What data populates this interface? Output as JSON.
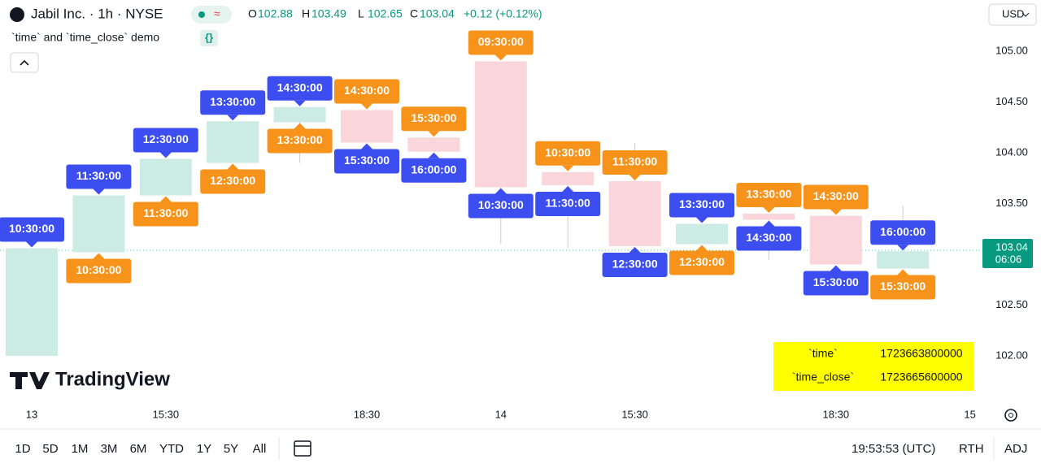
{
  "header": {
    "symbol": "Jabil Inc. · 1h · NYSE",
    "ohlc": [
      {
        "key": "O",
        "value": "102.88"
      },
      {
        "key": "H",
        "value": "103.49"
      },
      {
        "key": "L",
        "value": "102.65"
      },
      {
        "key": "C",
        "value": "103.04"
      }
    ],
    "change": "+0.12 (+0.12%)",
    "indicator": "`time` and `time_close` demo",
    "currency": "USD"
  },
  "chart_data": {
    "type": "candlestick",
    "categories": [
      "13",
      null,
      "15:30",
      null,
      null,
      "18:30",
      null,
      "14",
      null,
      "15:30",
      null,
      null,
      "18:30",
      null,
      "15"
    ],
    "open": [
      102.0,
      103.02,
      103.58,
      103.9,
      104.3,
      104.42,
      104.15,
      104.9,
      103.81,
      103.72,
      103.1,
      103.4,
      103.38,
      102.86,
      null
    ],
    "high": [
      103.06,
      103.58,
      103.94,
      104.31,
      104.45,
      104.42,
      104.15,
      104.9,
      103.81,
      104.1,
      103.3,
      103.4,
      103.38,
      103.48,
      null
    ],
    "low": [
      102.0,
      103.02,
      103.58,
      103.9,
      103.9,
      104.1,
      104.01,
      103.1,
      103.06,
      103.08,
      103.1,
      102.94,
      102.9,
      102.86,
      null
    ],
    "close": [
      103.06,
      103.58,
      103.94,
      104.31,
      104.45,
      104.1,
      104.01,
      103.66,
      103.68,
      103.08,
      103.3,
      103.34,
      102.9,
      103.03,
      null
    ],
    "time_labels": [
      "10:30:00",
      "11:30:00",
      "12:30:00",
      "13:30:00",
      "14:30:00",
      "15:30:00",
      "16:00:00",
      "10:30:00",
      "11:30:00",
      "12:30:00",
      "13:30:00",
      "14:30:00",
      "15:30:00",
      "16:00:00",
      null
    ],
    "time_close_labels": [
      null,
      "10:30:00",
      "11:30:00",
      "12:30:00",
      "13:30:00",
      "14:30:00",
      "15:30:00",
      "09:30:00",
      "10:30:00",
      "11:30:00",
      "12:30:00",
      "13:30:00",
      "14:30:00",
      "15:30:00",
      null
    ],
    "up_color": "#cdebe5",
    "down_color": "#fad6da",
    "time_color": "#3c4ef0",
    "time_close_color": "#f7931a",
    "ylim": [
      101.584,
      105.264
    ],
    "yticks": [
      {
        "value": 102,
        "label": "102.00"
      },
      {
        "value": 102.5,
        "label": "102.50"
      },
      {
        "value": 103.5,
        "label": "103.50"
      },
      {
        "value": 104,
        "label": "104.00"
      },
      {
        "value": 104.5,
        "label": "104.50"
      },
      {
        "value": 105,
        "label": "105.00"
      }
    ],
    "last_price": 103.04,
    "countdown": "06:06"
  },
  "info_table": {
    "rows": [
      [
        "`time`",
        "1723663800000"
      ],
      [
        "`time_close`",
        "1723665600000"
      ]
    ]
  },
  "watermark": "TradingView",
  "footer": {
    "ranges": [
      "1D",
      "5D",
      "1M",
      "3M",
      "6M",
      "YTD",
      "1Y",
      "5Y",
      "All"
    ],
    "clock": "19:53:53 (UTC)",
    "session": "RTH",
    "adjust": "ADJ"
  }
}
